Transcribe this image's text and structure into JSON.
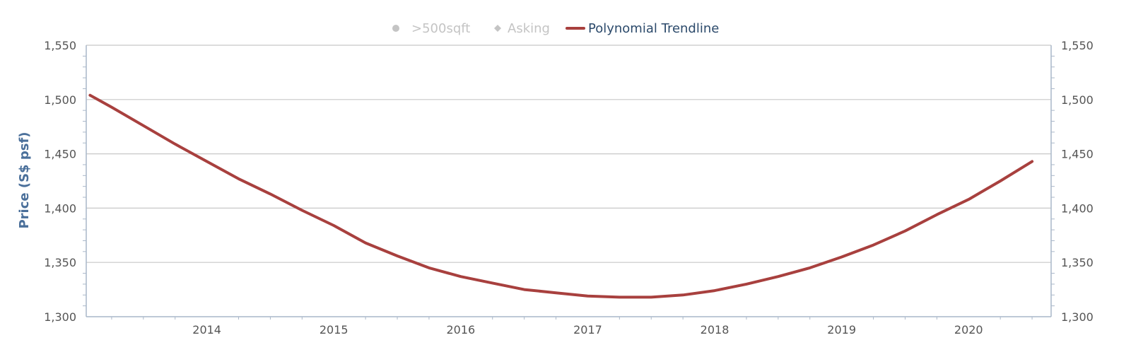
{
  "colors": {
    "trendline": "#a8403e",
    "grid": "#c8c8c8",
    "axis": "#a9b7c9",
    "legend_active": "#2c4a6b",
    "legend_hidden": "#c4c4c4",
    "axis_title": "#4a6f9a",
    "tick_text": "#555555"
  },
  "chart_data": {
    "type": "line",
    "title": "",
    "xlabel": "",
    "ylabel": "Price (S$ psf)",
    "ylabel_right": "",
    "xlim": [
      2013.05,
      2020.65
    ],
    "ylim": [
      1300,
      1550
    ],
    "x_ticks": [
      "2014",
      "2015",
      "2016",
      "2017",
      "2018",
      "2019",
      "2020"
    ],
    "y_ticks": [
      "1,300",
      "1,350",
      "1,400",
      "1,450",
      "1,500",
      "1,550"
    ],
    "y_ticks_right": [
      "1,300",
      "1,350",
      "1,400",
      "1,450",
      "1,500",
      "1,550"
    ],
    "grid": true,
    "legend_position": "top-center",
    "legend": [
      {
        "name": ">500sqft",
        "symbol": "circle",
        "visible": false
      },
      {
        "name": "Asking",
        "symbol": "diamond",
        "visible": false
      },
      {
        "name": "Polynomial Trendline",
        "symbol": "line",
        "visible": true
      }
    ],
    "series": [
      {
        "name": "Polynomial Trendline",
        "x": [
          2013.08,
          2013.25,
          2013.5,
          2013.75,
          2014.0,
          2014.25,
          2014.5,
          2014.75,
          2015.0,
          2015.25,
          2015.5,
          2015.75,
          2016.0,
          2016.25,
          2016.5,
          2016.75,
          2017.0,
          2017.25,
          2017.5,
          2017.75,
          2018.0,
          2018.25,
          2018.5,
          2018.75,
          2019.0,
          2019.25,
          2019.5,
          2019.75,
          2020.0,
          2020.25,
          2020.5
        ],
        "values": [
          1504,
          1493,
          1476,
          1459,
          1443,
          1427,
          1413,
          1398,
          1384,
          1368,
          1356,
          1345,
          1337,
          1331,
          1325,
          1322,
          1319,
          1318,
          1318,
          1320,
          1324,
          1330,
          1337,
          1345,
          1355,
          1366,
          1379,
          1394,
          1408,
          1425,
          1443
        ]
      }
    ]
  }
}
